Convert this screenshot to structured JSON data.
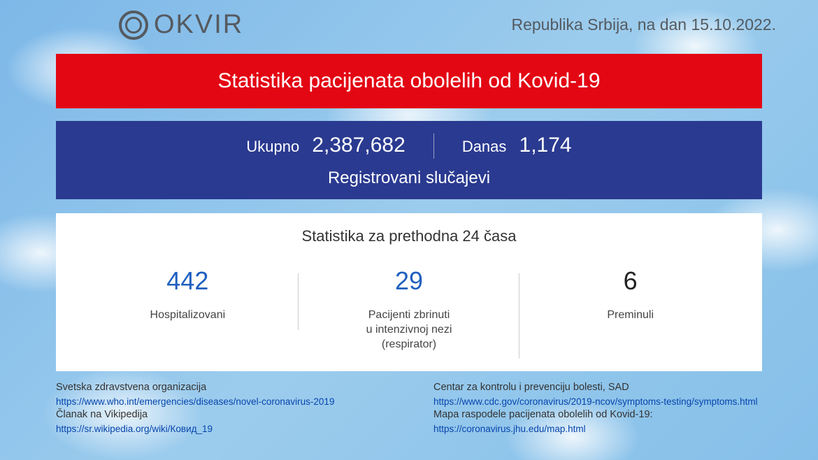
{
  "logo_text": "OKVIR",
  "header": {
    "country_date": "Republika Srbija, na dan 15.10.2022."
  },
  "red_banner": {
    "title": "Statistika pacijenata obolelih od Kovid-19",
    "bg_color": "#e30613",
    "text_color": "#ffffff"
  },
  "blue_banner": {
    "bg_color": "#2a3a90",
    "text_color": "#ffffff",
    "total_label": "Ukupno",
    "total_value": "2,387,682",
    "today_label": "Danas",
    "today_value": "1,174",
    "subtitle": "Registrovani slučajevi"
  },
  "white_panel": {
    "title": "Statistika za prethodna 24 časa",
    "stats": [
      {
        "value": "442",
        "label": "Hospitalizovani",
        "color": "blue"
      },
      {
        "value": "29",
        "label": "Pacijenti zbrinuti\nu intenzivnoj nezi\n(respirator)",
        "color": "blue"
      },
      {
        "value": "6",
        "label": "Preminuli",
        "color": "black"
      }
    ]
  },
  "footer": {
    "left": {
      "src1_title": "Svetska zdravstvena organizacija",
      "src1_link": "https://www.who.int/emergencies/diseases/novel-coronavirus-2019",
      "src2_title": "Članak na Vikipedija",
      "src2_link": "https://sr.wikipedia.org/wiki/Ковид_19"
    },
    "right": {
      "src1_title": "Centar za kontrolu i prevenciju bolesti, SAD",
      "src1_link": "https://www.cdc.gov/coronavirus/2019-ncov/symptoms-testing/symptoms.html",
      "src2_title": "Mapa raspodele pacijenata obolelih od Kovid-19:",
      "src2_link": "https://coronavirus.jhu.edu/map.html"
    }
  }
}
